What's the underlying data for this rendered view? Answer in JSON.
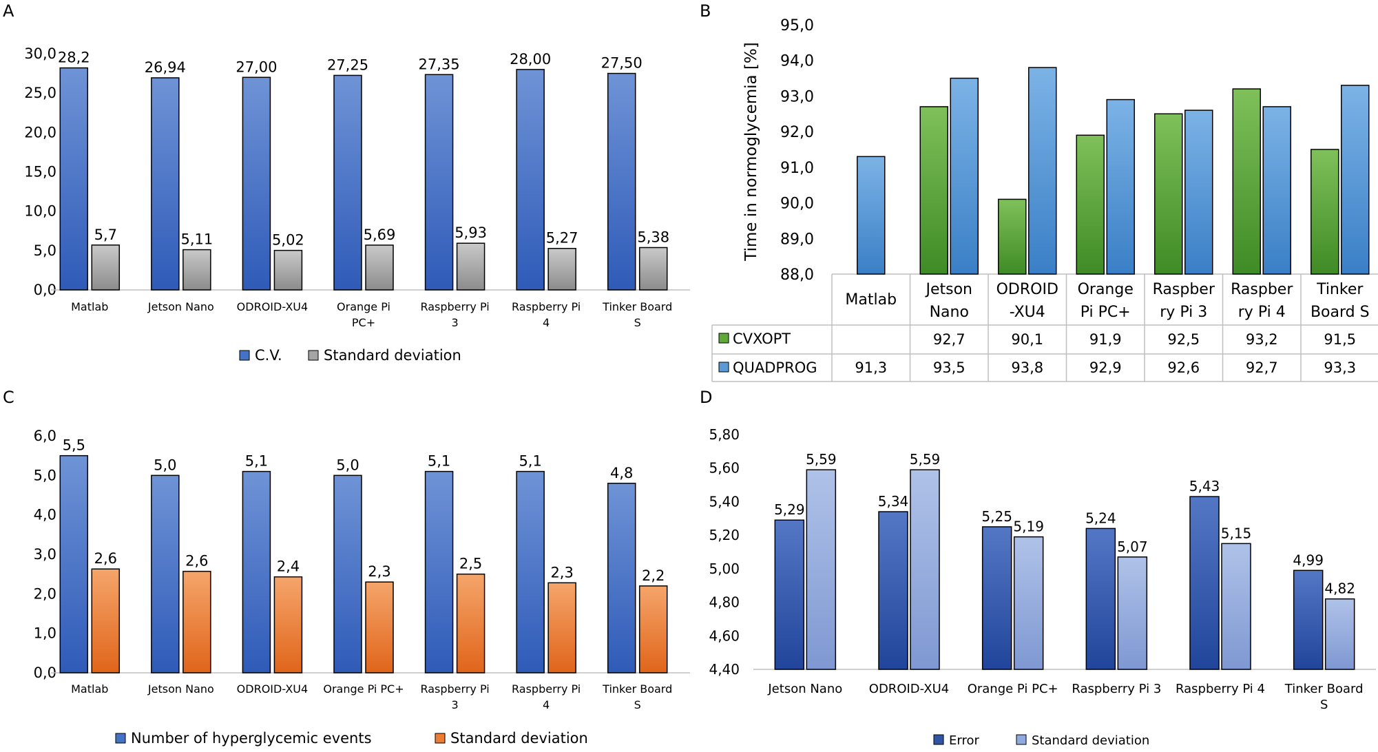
{
  "panels": {
    "A": {
      "label": "A"
    },
    "B": {
      "label": "B"
    },
    "C": {
      "label": "C"
    },
    "D": {
      "label": "D"
    }
  },
  "colors": {
    "blue": "#4472C4",
    "gray": "#A5A5A5",
    "green": "#5FA83A",
    "light_blue": "#5B9BD5",
    "orange": "#ED7D31",
    "periwinkle": "#8FAADC",
    "axis": "#BFBFBF",
    "bar_stroke": "#000000"
  },
  "chart_data": [
    {
      "id": "A",
      "type": "bar",
      "categories": [
        "Matlab",
        "Jetson Nano",
        "ODROID-XU4",
        "Orange Pi PC+",
        "Raspberry Pi 3",
        "Raspberry Pi 4",
        "Tinker Board S"
      ],
      "category_lines": [
        [
          "Matlab"
        ],
        [
          "Jetson Nano"
        ],
        [
          "ODROID-XU4"
        ],
        [
          "Orange Pi",
          "PC+"
        ],
        [
          "Raspberry Pi",
          "3"
        ],
        [
          "Raspberry Pi",
          "4"
        ],
        [
          "Tinker Board",
          "S"
        ]
      ],
      "series": [
        {
          "name": "C.V.",
          "values": [
            28.2,
            26.94,
            27.0,
            27.25,
            27.35,
            28.0,
            27.5
          ],
          "labels": [
            "28,2",
            "26,94",
            "27,00",
            "27,25",
            "27,35",
            "28,00",
            "27,50"
          ]
        },
        {
          "name": "Standard deviation",
          "values": [
            5.7,
            5.11,
            5.02,
            5.69,
            5.93,
            5.27,
            5.38
          ],
          "labels": [
            "5,7",
            "5,11",
            "5,02",
            "5,69",
            "5,93",
            "5,27",
            "5,38"
          ]
        }
      ],
      "ylim": [
        0,
        30
      ],
      "yticks": [
        "0,0",
        "5,0",
        "10,0",
        "15,0",
        "20,0",
        "25,0",
        "30,0"
      ],
      "legend": "bottom"
    },
    {
      "id": "B",
      "type": "bar",
      "ylabel": "Time in normoglycemia [%]",
      "categories": [
        "Matlab",
        "Jetson Nano",
        "ODROID-XU4",
        "Orange Pi PC+",
        "Raspberry Pi 3",
        "Raspberry Pi 4",
        "Tinker Board S"
      ],
      "category_lines": [
        [
          "Matlab"
        ],
        [
          "Jetson",
          "Nano"
        ],
        [
          "ODROID",
          "-XU4"
        ],
        [
          "Orange",
          "Pi PC+"
        ],
        [
          "Raspber",
          "ry Pi 3"
        ],
        [
          "Raspber",
          "ry Pi 4"
        ],
        [
          "Tinker",
          "Board S"
        ]
      ],
      "series": [
        {
          "name": "CVXOPT",
          "values": [
            null,
            92.7,
            90.1,
            91.9,
            92.5,
            93.2,
            91.5
          ],
          "labels": [
            "",
            "92,7",
            "90,1",
            "91,9",
            "92,5",
            "93,2",
            "91,5"
          ]
        },
        {
          "name": "QUADPROG",
          "values": [
            91.3,
            93.5,
            93.8,
            92.9,
            92.6,
            92.7,
            93.3
          ],
          "labels": [
            "91,3",
            "93,5",
            "93,8",
            "92,9",
            "92,6",
            "92,7",
            "93,3"
          ]
        }
      ],
      "ylim": [
        88,
        95
      ],
      "yticks": [
        "88,0",
        "89,0",
        "90,0",
        "91,0",
        "92,0",
        "93,0",
        "94,0",
        "95,0"
      ],
      "legend": "data table"
    },
    {
      "id": "C",
      "type": "bar",
      "categories": [
        "Matlab",
        "Jetson Nano",
        "ODROID-XU4",
        "Orange Pi PC+",
        "Raspberry Pi 3",
        "Raspberry Pi 4",
        "Tinker Board S"
      ],
      "category_lines": [
        [
          "Matlab"
        ],
        [
          "Jetson Nano"
        ],
        [
          "ODROID-XU4"
        ],
        [
          "Orange Pi PC+"
        ],
        [
          "Raspberry Pi",
          "3"
        ],
        [
          "Raspberry Pi",
          "4"
        ],
        [
          "Tinker Board",
          "S"
        ]
      ],
      "series": [
        {
          "name": "Number of hyperglycemic events",
          "values": [
            5.5,
            5.0,
            5.1,
            5.0,
            5.1,
            5.1,
            4.8
          ],
          "labels": [
            "5,5",
            "5,0",
            "5,1",
            "5,0",
            "5,1",
            "5,1",
            "4,8"
          ]
        },
        {
          "name": "Standard deviation",
          "values": [
            2.63,
            2.57,
            2.43,
            2.3,
            2.5,
            2.28,
            2.2
          ],
          "labels": [
            "2,6",
            "2,6",
            "2,4",
            "2,3",
            "2,5",
            "2,3",
            "2,2"
          ]
        }
      ],
      "ylim": [
        0,
        6
      ],
      "yticks": [
        "0,0",
        "1,0",
        "2,0",
        "3,0",
        "4,0",
        "5,0",
        "6,0"
      ],
      "legend": "bottom"
    },
    {
      "id": "D",
      "type": "bar",
      "categories": [
        "Jetson Nano",
        "ODROID-XU4",
        "Orange Pi PC+",
        "Raspberry Pi 3",
        "Raspberry Pi 4",
        "Tinker Board S"
      ],
      "category_lines": [
        [
          "Jetson Nano"
        ],
        [
          "ODROID-XU4"
        ],
        [
          "Orange Pi PC+"
        ],
        [
          "Raspberry Pi 3"
        ],
        [
          "Raspberry Pi 4"
        ],
        [
          "Tinker Board",
          "S"
        ]
      ],
      "series": [
        {
          "name": "Error",
          "values": [
            5.29,
            5.34,
            5.25,
            5.24,
            5.43,
            4.99
          ],
          "labels": [
            "5,29",
            "5,34",
            "5,25",
            "5,24",
            "5,43",
            "4,99"
          ]
        },
        {
          "name": "Standard deviation",
          "values": [
            5.59,
            5.59,
            5.19,
            5.07,
            5.15,
            4.82
          ],
          "labels": [
            "5,59",
            "5,59",
            "5,19",
            "5,07",
            "5,15",
            "4,82"
          ]
        }
      ],
      "ylim": [
        4.4,
        5.8
      ],
      "yticks": [
        "4,40",
        "4,60",
        "4,80",
        "5,00",
        "5,20",
        "5,40",
        "5,60",
        "5,80"
      ],
      "legend": "bottom"
    }
  ]
}
